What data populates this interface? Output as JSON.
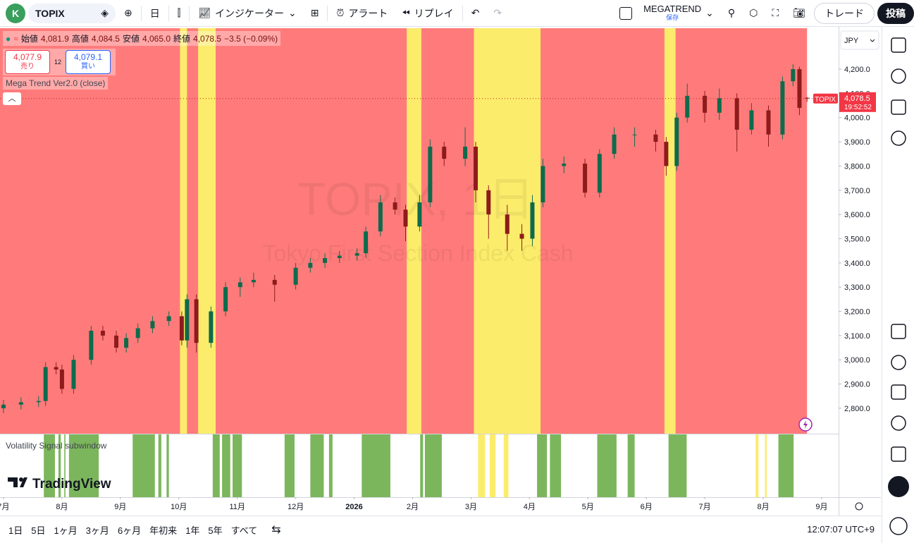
{
  "toolbar": {
    "avatar": "K",
    "symbol": "TOPIX",
    "interval": "日",
    "indicators": "インジケーター",
    "alert": "アラート",
    "replay": "リプレイ",
    "layout_name": "MEGATREND",
    "layout_status": "保存",
    "trade": "トレード",
    "publish": "投稿"
  },
  "legend": {
    "items": [
      {
        "label": "始値",
        "value": "4,081.9"
      },
      {
        "label": "高値",
        "value": "4,084.5"
      },
      {
        "label": "安値",
        "value": "4,065.0"
      },
      {
        "label": "終値",
        "value": "4,078.5"
      }
    ],
    "change": "−3.5 (−0.09%)",
    "sell_price": "4,077.9",
    "sell": "売り",
    "spread": "12",
    "buy_price": "4,079.1",
    "buy": "買い",
    "indicator": "Mega Trend Ver2.0 (close)"
  },
  "watermark": {
    "symbol": "TOPIX, 1日",
    "description": "Tokyo First Section Index Cash"
  },
  "chart_data": {
    "type": "candlestick",
    "x": [
      0,
      0.3,
      0.6,
      0.72,
      0.9,
      1.0,
      1.2,
      1.5,
      1.7,
      1.93,
      2.1,
      2.3,
      2.55,
      2.83,
      3.05,
      3.14,
      3.3,
      3.55,
      3.8,
      4.05,
      4.28,
      4.64,
      5.0,
      5.25,
      5.5,
      5.75,
      6.05,
      6.2,
      6.45,
      6.7,
      6.88,
      7.12,
      7.3,
      7.54,
      7.9,
      8.08,
      8.3,
      8.62,
      8.87,
      9.05,
      9.23,
      9.59,
      9.95,
      10.2,
      10.45,
      10.8,
      11.16,
      11.34,
      11.52,
      11.7,
      12.0,
      12.25,
      12.55,
      12.8,
      13.09,
      13.33,
      13.51,
      13.62,
      13.75
    ],
    "open": [
      2800,
      2815,
      2825,
      2830,
      2970,
      2960,
      2880,
      3000,
      3120,
      3100,
      3050,
      3090,
      3130,
      3160,
      3180,
      3080,
      3250,
      3070,
      3200,
      3300,
      3320,
      3330,
      3310,
      3380,
      3400,
      3420,
      3430,
      3440,
      3530,
      3650,
      3620,
      3550,
      3650,
      3880,
      3830,
      3880,
      3700,
      3600,
      3520,
      3500,
      3650,
      3800,
      3810,
      3690,
      3850,
      3930,
      3930,
      3900,
      3800,
      4000,
      4090,
      4020,
      4080,
      3950,
      4030,
      3930,
      4150,
      4200,
      4081.9
    ],
    "high": [
      2835,
      2845,
      2850,
      2990,
      2990,
      2980,
      3020,
      3140,
      3140,
      3120,
      3110,
      3150,
      3180,
      3200,
      3200,
      3270,
      3270,
      3220,
      3320,
      3340,
      3360,
      3350,
      3400,
      3420,
      3440,
      3450,
      3460,
      3550,
      3680,
      3670,
      3640,
      3680,
      3910,
      3900,
      3960,
      3900,
      3720,
      3640,
      3560,
      3680,
      3830,
      3840,
      3830,
      3870,
      3960,
      3960,
      3950,
      3920,
      4020,
      4140,
      4110,
      4120,
      4100,
      4060,
      4050,
      4170,
      4220,
      4210,
      4084.5
    ],
    "low": [
      2780,
      2795,
      2805,
      2810,
      2940,
      2860,
      2860,
      2980,
      3080,
      3030,
      3030,
      3070,
      3110,
      3140,
      3060,
      3050,
      3030,
      3050,
      3180,
      3260,
      3300,
      3240,
      3290,
      3360,
      3380,
      3400,
      3410,
      3420,
      3510,
      3600,
      3490,
      3530,
      3630,
      3800,
      3800,
      3650,
      3500,
      3450,
      3450,
      3470,
      3630,
      3770,
      3670,
      3670,
      3830,
      3880,
      3860,
      3760,
      3780,
      3980,
      3980,
      3990,
      3860,
      3930,
      3880,
      3910,
      4130,
      4010,
      4065.0
    ],
    "close": [
      2815,
      2825,
      2830,
      2970,
      2960,
      2880,
      3000,
      3120,
      3100,
      3050,
      3090,
      3130,
      3160,
      3180,
      3080,
      3250,
      3070,
      3200,
      3300,
      3320,
      3330,
      3310,
      3380,
      3400,
      3420,
      3430,
      3440,
      3530,
      3650,
      3620,
      3550,
      3650,
      3880,
      3830,
      3880,
      3700,
      3600,
      3520,
      3500,
      3650,
      3800,
      3810,
      3690,
      3850,
      3930,
      3930,
      3900,
      3800,
      4000,
      4090,
      4020,
      4080,
      3950,
      4030,
      3930,
      4150,
      4200,
      4040,
      4078.5
    ],
    "up_color": "#0d6b4c",
    "down_color": "#8e1b1b",
    "background_color": "#ff7b7b",
    "band_color": "#fcec6b",
    "yellow_bands": [
      [
        3.02,
        3.14
      ],
      [
        3.33,
        3.63
      ],
      [
        6.9,
        7.15
      ],
      [
        8.05,
        9.19
      ],
      [
        11.31,
        11.5
      ]
    ],
    "xlim": [
      -0.06,
      14.29
    ],
    "xticks": [
      {
        "value": 0,
        "label": "7月"
      },
      {
        "value": 1,
        "label": "8月"
      },
      {
        "value": 2,
        "label": "9月"
      },
      {
        "value": 3,
        "label": "10月"
      },
      {
        "value": 4,
        "label": "11月"
      },
      {
        "value": 5,
        "label": "12月"
      },
      {
        "value": 6,
        "label": "2026"
      },
      {
        "value": 7,
        "label": "2月"
      },
      {
        "value": 8,
        "label": "3月"
      },
      {
        "value": 9,
        "label": "4月"
      },
      {
        "value": 10,
        "label": "5月"
      },
      {
        "value": 11,
        "label": "6月"
      },
      {
        "value": 12,
        "label": "7月"
      },
      {
        "value": 13,
        "label": "8月"
      },
      {
        "value": 14,
        "label": "9月"
      }
    ],
    "ylim": [
      2695,
      4369
    ],
    "yticks": [
      {
        "value": 2800,
        "label": "2,800.0"
      },
      {
        "value": 2900,
        "label": "2,900.0"
      },
      {
        "value": 3000,
        "label": "3,000.0"
      },
      {
        "value": 3100,
        "label": "3,100.0"
      },
      {
        "value": 3200,
        "label": "3,200.0"
      },
      {
        "value": 3300,
        "label": "3,300.0"
      },
      {
        "value": 3400,
        "label": "3,400.0"
      },
      {
        "value": 3500,
        "label": "3,500.0"
      },
      {
        "value": 3600,
        "label": "3,600.0"
      },
      {
        "value": 3700,
        "label": "3,700.0"
      },
      {
        "value": 3800,
        "label": "3,800.0"
      },
      {
        "value": 3900,
        "label": "3,900.0"
      },
      {
        "value": 4000,
        "label": "4,000.0"
      },
      {
        "value": 4100,
        "label": "4,100.0"
      },
      {
        "value": 4200,
        "label": "4,200.0"
      }
    ],
    "last_price": {
      "value": 4078.5,
      "label": "4,078.5"
    },
    "last_symbol": "TOPIX",
    "countdown": "19:52:52",
    "currency": "JPY"
  },
  "subwindow": {
    "title": "Volatility Signal subwindow",
    "green_color": "#7cb65c",
    "yellow_color": "#fcec6b",
    "green_bands": [
      [
        0.69,
        0.88
      ],
      [
        0.94,
        0.98
      ],
      [
        1.04,
        1.06
      ],
      [
        1.12,
        1.63
      ],
      [
        2.21,
        2.59
      ],
      [
        2.65,
        2.7
      ],
      [
        2.79,
        2.83
      ],
      [
        3.58,
        3.7
      ],
      [
        3.74,
        3.88
      ],
      [
        3.92,
        4.08
      ],
      [
        4.81,
        4.98
      ],
      [
        5.25,
        5.48
      ],
      [
        5.57,
        5.63
      ],
      [
        6.13,
        6.62
      ],
      [
        7.13,
        7.18
      ],
      [
        7.21,
        7.5
      ],
      [
        9.13,
        9.3
      ],
      [
        9.35,
        9.54
      ],
      [
        10.16,
        10.49
      ],
      [
        10.68,
        10.8
      ],
      [
        11.38,
        11.69
      ],
      [
        13.26,
        13.52
      ]
    ],
    "yellow_bands": [
      [
        8.12,
        8.24
      ],
      [
        8.32,
        8.42
      ],
      [
        8.56,
        8.64
      ],
      [
        12.87,
        12.92
      ],
      [
        13.03,
        13.06
      ]
    ]
  },
  "brand": "TradingView",
  "footer": {
    "ranges": [
      "1日",
      "5日",
      "1ヶ月",
      "3ヶ月",
      "6ヶ月",
      "年初来",
      "1年",
      "5年",
      "すべて"
    ],
    "clock": "12:07:07 UTC+9"
  }
}
